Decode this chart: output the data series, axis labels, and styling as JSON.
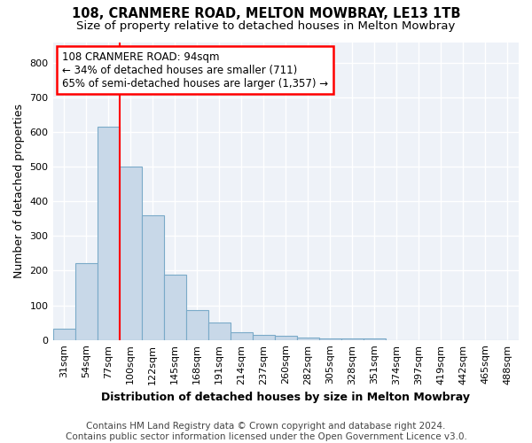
{
  "title1": "108, CRANMERE ROAD, MELTON MOWBRAY, LE13 1TB",
  "title2": "Size of property relative to detached houses in Melton Mowbray",
  "xlabel": "Distribution of detached houses by size in Melton Mowbray",
  "ylabel": "Number of detached properties",
  "categories": [
    "31sqm",
    "54sqm",
    "77sqm",
    "100sqm",
    "122sqm",
    "145sqm",
    "168sqm",
    "191sqm",
    "214sqm",
    "237sqm",
    "260sqm",
    "282sqm",
    "305sqm",
    "328sqm",
    "351sqm",
    "374sqm",
    "397sqm",
    "419sqm",
    "442sqm",
    "465sqm",
    "488sqm"
  ],
  "values": [
    32,
    222,
    615,
    500,
    360,
    188,
    85,
    50,
    22,
    15,
    13,
    7,
    5,
    5,
    5,
    0,
    0,
    0,
    0,
    0,
    0
  ],
  "bar_color": "#c8d8e8",
  "bar_edge_color": "#7aaac8",
  "red_line_x": 3.0,
  "annotation_text": "108 CRANMERE ROAD: 94sqm\n← 34% of detached houses are smaller (711)\n65% of semi-detached houses are larger (1,357) →",
  "annotation_box_color": "white",
  "annotation_box_edge_color": "red",
  "red_line_color": "red",
  "ylim": [
    0,
    860
  ],
  "yticks": [
    0,
    100,
    200,
    300,
    400,
    500,
    600,
    700,
    800
  ],
  "background_color": "#eef2f8",
  "footer1": "Contains HM Land Registry data © Crown copyright and database right 2024.",
  "footer2": "Contains public sector information licensed under the Open Government Licence v3.0.",
  "title1_fontsize": 10.5,
  "title2_fontsize": 9.5,
  "annotation_fontsize": 8.5,
  "axis_label_fontsize": 9,
  "tick_fontsize": 8,
  "footer_fontsize": 7.5
}
